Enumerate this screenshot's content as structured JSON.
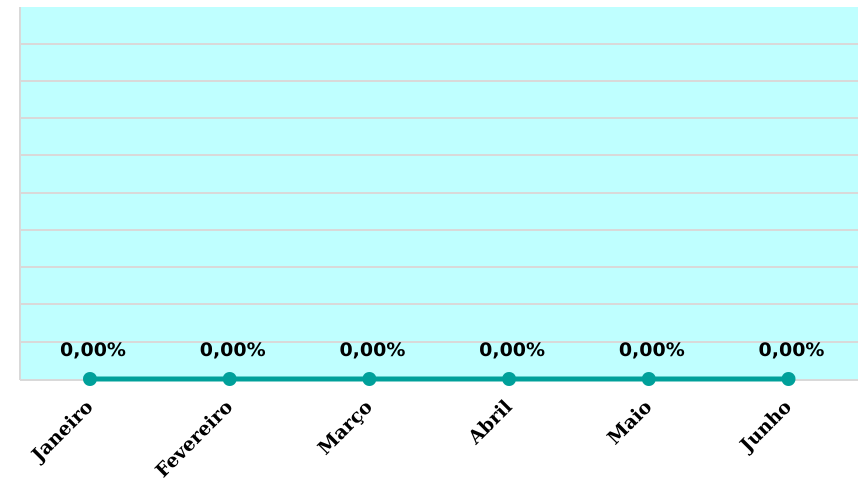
{
  "chart_data": {
    "type": "line",
    "categories": [
      "Janeiro",
      "Fevereiro",
      "Março",
      "Abril",
      "Maio",
      "Junho"
    ],
    "series": [
      {
        "values": [
          0,
          0,
          0,
          0,
          0,
          0
        ],
        "labels": [
          "0,00%",
          "0,00%",
          "0,00%",
          "0,00%",
          "0,00%",
          "0,00%"
        ],
        "color": "#00a09a"
      }
    ],
    "title": "",
    "xlabel": "",
    "ylabel": "",
    "grid": true,
    "plot_background": "#bfffff",
    "gridline_color": "#d9d9d9"
  }
}
